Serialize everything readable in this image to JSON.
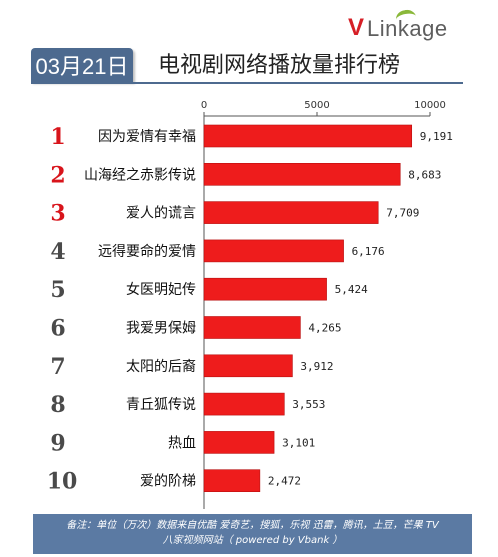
{
  "brand": {
    "logo_v": "V",
    "logo_rest": "Linkage"
  },
  "header": {
    "date": "03月21日",
    "title": "电视剧网络播放量排行榜"
  },
  "colors": {
    "bar": "#ee1c1c",
    "rank_red": "#d8141b",
    "rank_dark": "#4a4a4a",
    "header_blue": "#4d6a8f",
    "footer_blue": "#5b7aa3"
  },
  "chart_data": {
    "type": "bar",
    "orientation": "horizontal",
    "xlim": [
      0,
      10000
    ],
    "xticks": [
      "0",
      "5000",
      "10000"
    ],
    "tick_values": [
      0,
      5000,
      10000
    ],
    "grid": false,
    "ranks": [
      "1",
      "2",
      "3",
      "4",
      "5",
      "6",
      "7",
      "8",
      "9",
      "10"
    ],
    "categories": [
      "因为爱情有幸福",
      "山海经之赤影传说",
      "爱人的谎言",
      "远得要命的爱情",
      "女医明妃传",
      "我爱男保姆",
      "太阳的后裔",
      "青丘狐传说",
      "热血",
      "爱的阶梯"
    ],
    "values": [
      9191,
      8683,
      7709,
      6176,
      5424,
      4265,
      3912,
      3553,
      3101,
      2472
    ],
    "value_labels": [
      "9,191",
      "8,683",
      "7,709",
      "6,176",
      "5,424",
      "4,265",
      "3,912",
      "3,553",
      "3,101",
      "2,472"
    ]
  },
  "footer": {
    "line1": "备注：单位（万次）数据来自优酷 爱奇艺，搜狐，乐视  迅雷，腾讯，土豆，芒果 TV",
    "line2": "八家视频网站（ powered by Vbank ）"
  }
}
